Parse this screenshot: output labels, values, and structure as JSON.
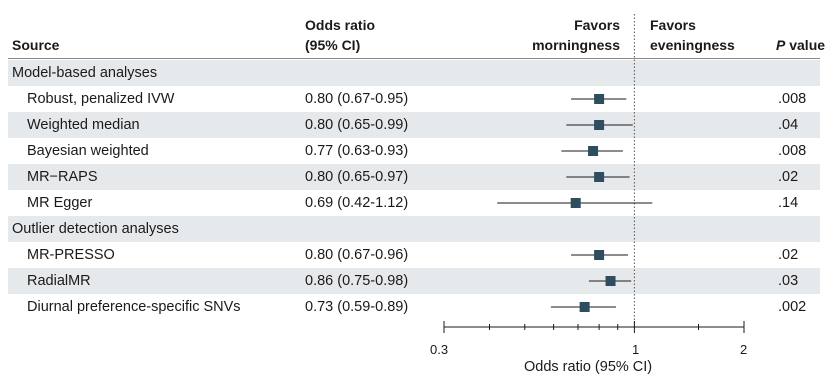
{
  "headers": {
    "source": "Source",
    "or_line1": "Odds ratio",
    "or_line2": "(95% CI)",
    "favors_left_line1": "Favors",
    "favors_left_line2": "morningness",
    "favors_right_line1": "Favors",
    "favors_right_line2": "eveningness",
    "p_italic": "P",
    "p_rest": " value"
  },
  "groups": [
    {
      "label": "Model-based analyses",
      "rows": [
        {
          "source": "Robust, penalized IVW",
          "or_text": "0.80 (0.67-0.95)",
          "p": ".008"
        },
        {
          "source": "Weighted median",
          "or_text": "0.80 (0.65-0.99)",
          "p": ".04"
        },
        {
          "source": "Bayesian weighted",
          "or_text": "0.77 (0.63-0.93)",
          "p": ".008"
        },
        {
          "source": "MR−RAPS",
          "or_text": "0.80 (0.65-0.97)",
          "p": ".02"
        },
        {
          "source": "MR Egger",
          "or_text": "0.69 (0.42-1.12)",
          "p": ".14"
        }
      ]
    },
    {
      "label": "Outlier detection analyses",
      "rows": [
        {
          "source": "MR-PRESSO",
          "or_text": "0.80 (0.67-0.96)",
          "p": ".02"
        },
        {
          "source": "RadialMR",
          "or_text": "0.86 (0.75-0.98)",
          "p": ".03"
        },
        {
          "source": "Diurnal preference-specific SNVs",
          "or_text": "0.73 (0.59-0.89)",
          "p": ".002"
        }
      ]
    }
  ],
  "chart_data": {
    "type": "forest",
    "scale": "log",
    "xlim": [
      0.3,
      2
    ],
    "xticks_labeled": [
      "0.3",
      "1",
      "2"
    ],
    "xticks_minor": [
      0.4,
      0.5,
      0.6,
      0.7,
      0.8,
      0.9,
      1.5
    ],
    "reference_line": 1,
    "xlabel": "Odds ratio (95% CI)",
    "colors": {
      "marker": "#2e4d5e",
      "line": "#1a1a1a",
      "band": "#e6e9ec"
    },
    "points": [
      {
        "label": "Robust, penalized IVW",
        "or": 0.8,
        "lo": 0.67,
        "hi": 0.95
      },
      {
        "label": "Weighted median",
        "or": 0.8,
        "lo": 0.65,
        "hi": 0.99
      },
      {
        "label": "Bayesian weighted",
        "or": 0.77,
        "lo": 0.63,
        "hi": 0.93
      },
      {
        "label": "MR−RAPS",
        "or": 0.8,
        "lo": 0.65,
        "hi": 0.97
      },
      {
        "label": "MR Egger",
        "or": 0.69,
        "lo": 0.42,
        "hi": 1.12
      },
      {
        "label": "MR-PRESSO",
        "or": 0.8,
        "lo": 0.67,
        "hi": 0.96
      },
      {
        "label": "RadialMR",
        "or": 0.86,
        "lo": 0.75,
        "hi": 0.98
      },
      {
        "label": "Diurnal preference-specific SNVs",
        "or": 0.73,
        "lo": 0.59,
        "hi": 0.89
      }
    ]
  }
}
